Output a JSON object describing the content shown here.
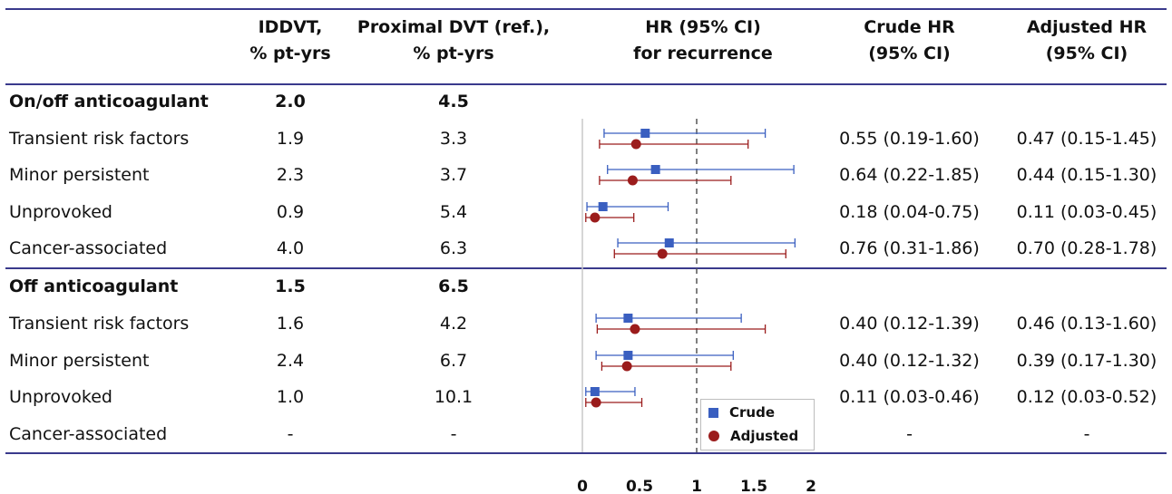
{
  "headers": {
    "iddvt": [
      "IDDVT,",
      "% pt-yrs"
    ],
    "proximal": [
      "Proximal DVT (ref.),",
      "% pt-yrs"
    ],
    "hr": [
      "HR (95% CI)",
      "for recurrence"
    ],
    "crude": [
      "Crude HR",
      "(95% CI)"
    ],
    "adjusted": [
      "Adjusted HR",
      "(95% CI)"
    ]
  },
  "rows": [
    {
      "label": "On/off anticoagulant",
      "iddvt": "2.0",
      "proximal": "4.5",
      "crude": "",
      "adjusted": "",
      "group": true
    },
    {
      "label": "Transient risk factors",
      "iddvt": "1.9",
      "proximal": "3.3",
      "crude": "0.55 (0.19-1.60)",
      "adjusted": "0.47 (0.15-1.45)",
      "group": false
    },
    {
      "label": "Minor persistent",
      "iddvt": "2.3",
      "proximal": "3.7",
      "crude": "0.64 (0.22-1.85)",
      "adjusted": "0.44 (0.15-1.30)",
      "group": false
    },
    {
      "label": "Unprovoked",
      "iddvt": "0.9",
      "proximal": "5.4",
      "crude": "0.18 (0.04-0.75)",
      "adjusted": "0.11 (0.03-0.45)",
      "group": false
    },
    {
      "label": "Cancer-associated",
      "iddvt": "4.0",
      "proximal": "6.3",
      "crude": "0.76 (0.31-1.86)",
      "adjusted": "0.70 (0.28-1.78)",
      "group": false
    },
    {
      "label": "Off anticoagulant",
      "iddvt": "1.5",
      "proximal": "6.5",
      "crude": "",
      "adjusted": "",
      "group": true
    },
    {
      "label": "Transient risk factors",
      "iddvt": "1.6",
      "proximal": "4.2",
      "crude": "0.40 (0.12-1.39)",
      "adjusted": "0.46 (0.13-1.60)",
      "group": false
    },
    {
      "label": "Minor persistent",
      "iddvt": "2.4",
      "proximal": "6.7",
      "crude": "0.40 (0.12-1.32)",
      "adjusted": "0.39 (0.17-1.30)",
      "group": false
    },
    {
      "label": "Unprovoked",
      "iddvt": "1.0",
      "proximal": "10.1",
      "crude": "0.11 (0.03-0.46)",
      "adjusted": "0.12 (0.03-0.52)",
      "group": false
    },
    {
      "label": "Cancer-associated",
      "iddvt": "-",
      "proximal": "-",
      "crude": "-",
      "adjusted": "-",
      "group": false
    }
  ],
  "chart_data": {
    "type": "scatter",
    "subtype": "forest-plot",
    "x_ticks": [
      "0",
      "0.5",
      "1",
      "1.5",
      "2"
    ],
    "xlim": [
      0,
      2
    ],
    "reference_line": 1,
    "grid": false,
    "legend": {
      "placement": "bottom-right",
      "entries": [
        "Crude",
        "Adjusted"
      ]
    },
    "categories": [
      "On/off anticoagulant: Transient risk factors",
      "On/off anticoagulant: Minor persistent",
      "On/off anticoagulant: Unprovoked",
      "On/off anticoagulant: Cancer-associated",
      "Off anticoagulant: Transient risk factors",
      "Off anticoagulant: Minor persistent",
      "Off anticoagulant: Unprovoked",
      "Off anticoagulant: Cancer-associated"
    ],
    "series": [
      {
        "name": "Crude",
        "marker": "square",
        "color": "#3a5fc0",
        "values": [
          0.55,
          0.64,
          0.18,
          0.76,
          0.4,
          0.4,
          0.11,
          null
        ],
        "lower": [
          0.19,
          0.22,
          0.04,
          0.31,
          0.12,
          0.12,
          0.03,
          null
        ],
        "upper": [
          1.6,
          1.85,
          0.75,
          1.86,
          1.39,
          1.32,
          0.46,
          null
        ]
      },
      {
        "name": "Adjusted",
        "marker": "circle",
        "color": "#9b1c1c",
        "values": [
          0.47,
          0.44,
          0.11,
          0.7,
          0.46,
          0.39,
          0.12,
          null
        ],
        "lower": [
          0.15,
          0.15,
          0.03,
          0.28,
          0.13,
          0.17,
          0.03,
          null
        ],
        "upper": [
          1.45,
          1.3,
          0.45,
          1.78,
          1.6,
          1.3,
          0.52,
          null
        ]
      }
    ]
  }
}
